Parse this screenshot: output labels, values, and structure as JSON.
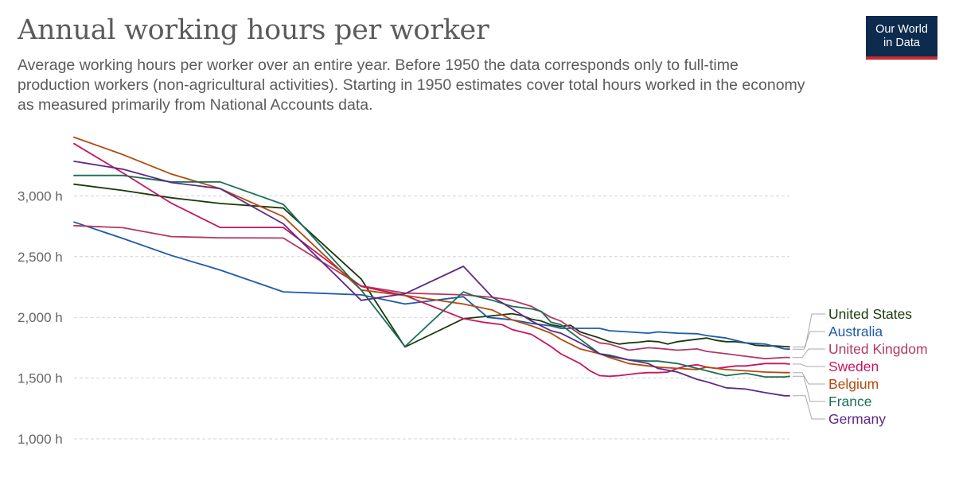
{
  "title": "Annual working hours per worker",
  "subtitle": "Average working hours per worker over an entire year. Before 1950 the data corresponds only to full-time production workers (non-agricultural activities). Starting in 1950 estimates cover total hours worked in the economy as measured primarily from National Accounts data.",
  "logo": {
    "line1": "Our World",
    "line2": "in Data"
  },
  "chart_data": {
    "type": "line",
    "title": "Annual working hours per worker",
    "xlabel": "",
    "ylabel": "",
    "xlim": [
      1870,
      2017
    ],
    "ylim": [
      1000,
      3500
    ],
    "yticks": [
      1000,
      1500,
      2000,
      2500,
      3000
    ],
    "ytick_labels": [
      "1,000 h",
      "1,500 h",
      "2,000 h",
      "2,500 h",
      "3,000 h"
    ],
    "grid": true,
    "legend": "right, labels at line ends",
    "series": [
      {
        "name": "United States",
        "color": "#1b3a0b",
        "label_order": 0,
        "x": [
          1870,
          1880,
          1890,
          1900,
          1913,
          1929,
          1938,
          1950,
          1960,
          1962,
          1964,
          1966,
          1968,
          1970,
          1972,
          1974,
          1976,
          1978,
          1980,
          1982,
          1984,
          1986,
          1988,
          1990,
          1992,
          1994,
          1996,
          1998,
          2000,
          2002,
          2004,
          2006,
          2008,
          2010,
          2012,
          2014,
          2016,
          2017
        ],
        "y": [
          3096,
          3045,
          2984,
          2938,
          2900,
          2316,
          1756,
          1989,
          2030,
          2015,
          1985,
          1970,
          1940,
          1925,
          1935,
          1880,
          1855,
          1830,
          1800,
          1780,
          1790,
          1795,
          1805,
          1800,
          1780,
          1800,
          1810,
          1820,
          1830,
          1810,
          1800,
          1800,
          1790,
          1770,
          1765,
          1765,
          1760,
          1757
        ]
      },
      {
        "name": "Australia",
        "color": "#1e5aa8",
        "label_order": 1,
        "x": [
          1870,
          1880,
          1890,
          1900,
          1913,
          1929,
          1938,
          1950,
          1955,
          1960,
          1964,
          1968,
          1970,
          1974,
          1978,
          1980,
          1984,
          1988,
          1990,
          1994,
          1998,
          2000,
          2004,
          2008,
          2012,
          2016,
          2017
        ],
        "y": [
          2785,
          2650,
          2510,
          2390,
          2210,
          2185,
          2110,
          2170,
          2000,
          1980,
          1950,
          1930,
          1910,
          1910,
          1910,
          1890,
          1880,
          1870,
          1880,
          1870,
          1865,
          1850,
          1830,
          1790,
          1780,
          1740,
          1738
        ]
      },
      {
        "name": "United Kingdom",
        "color": "#b13a61",
        "label_order": 2,
        "x": [
          1870,
          1880,
          1890,
          1900,
          1913,
          1929,
          1938,
          1950,
          1956,
          1960,
          1964,
          1968,
          1970,
          1974,
          1978,
          1980,
          1984,
          1988,
          1990,
          1994,
          1998,
          2000,
          2004,
          2008,
          2012,
          2016,
          2017
        ],
        "y": [
          2755,
          2738,
          2665,
          2655,
          2653,
          2259,
          2200,
          2185,
          2165,
          2140,
          2090,
          2000,
          1970,
          1860,
          1790,
          1780,
          1730,
          1750,
          1745,
          1730,
          1740,
          1720,
          1700,
          1680,
          1660,
          1670,
          1670
        ]
      },
      {
        "name": "Sweden",
        "color": "#c7155f",
        "label_order": 3,
        "x": [
          1870,
          1880,
          1890,
          1900,
          1913,
          1929,
          1938,
          1950,
          1954,
          1958,
          1960,
          1964,
          1968,
          1970,
          1974,
          1976,
          1978,
          1980,
          1982,
          1984,
          1986,
          1988,
          1990,
          1992,
          1994,
          1996,
          1998,
          2000,
          2002,
          2004,
          2006,
          2008,
          2010,
          2012,
          2014,
          2016,
          2017
        ],
        "y": [
          3430,
          3190,
          2940,
          2740,
          2740,
          2255,
          2180,
          1990,
          1960,
          1940,
          1900,
          1860,
          1760,
          1700,
          1620,
          1560,
          1520,
          1515,
          1520,
          1530,
          1540,
          1545,
          1545,
          1550,
          1580,
          1600,
          1610,
          1590,
          1580,
          1590,
          1600,
          1600,
          1610,
          1620,
          1620,
          1620,
          1615
        ]
      },
      {
        "name": "Belgium",
        "color": "#b34a0e",
        "label_order": 4,
        "x": [
          1870,
          1880,
          1890,
          1900,
          1913,
          1929,
          1938,
          1950,
          1956,
          1960,
          1964,
          1968,
          1970,
          1974,
          1978,
          1980,
          1984,
          1988,
          1990,
          1994,
          1998,
          2000,
          2004,
          2008,
          2012,
          2016,
          2017
        ],
        "y": [
          3483,
          3340,
          3180,
          3060,
          2830,
          2225,
          2180,
          2110,
          2060,
          1980,
          1930,
          1870,
          1820,
          1740,
          1700,
          1670,
          1620,
          1600,
          1590,
          1580,
          1570,
          1590,
          1570,
          1560,
          1550,
          1545,
          1545
        ]
      },
      {
        "name": "France",
        "color": "#1a6f56",
        "label_order": 5,
        "x": [
          1870,
          1880,
          1890,
          1900,
          1913,
          1929,
          1938,
          1950,
          1952,
          1956,
          1960,
          1964,
          1966,
          1968,
          1970,
          1974,
          1978,
          1980,
          1984,
          1988,
          1990,
          1994,
          1998,
          2000,
          2004,
          2008,
          2012,
          2016,
          2017
        ],
        "y": [
          3168,
          3168,
          3115,
          3115,
          2930,
          2225,
          1760,
          2210,
          2180,
          2140,
          2090,
          2070,
          2050,
          1960,
          1940,
          1820,
          1700,
          1690,
          1650,
          1640,
          1640,
          1620,
          1580,
          1560,
          1520,
          1540,
          1510,
          1510,
          1515
        ]
      },
      {
        "name": "Germany",
        "color": "#5d2a86",
        "label_order": 6,
        "x": [
          1870,
          1880,
          1890,
          1900,
          1913,
          1929,
          1938,
          1950,
          1956,
          1958,
          1960,
          1962,
          1964,
          1966,
          1968,
          1970,
          1974,
          1978,
          1980,
          1984,
          1988,
          1990,
          1994,
          1998,
          2000,
          2004,
          2008,
          2012,
          2016,
          2017
        ],
        "y": [
          3285,
          3220,
          3110,
          3060,
          2770,
          2140,
          2195,
          2420,
          2165,
          2120,
          2070,
          2020,
          1970,
          1930,
          1890,
          1870,
          1790,
          1700,
          1680,
          1650,
          1620,
          1580,
          1550,
          1490,
          1470,
          1420,
          1410,
          1380,
          1355,
          1355
        ]
      }
    ]
  }
}
